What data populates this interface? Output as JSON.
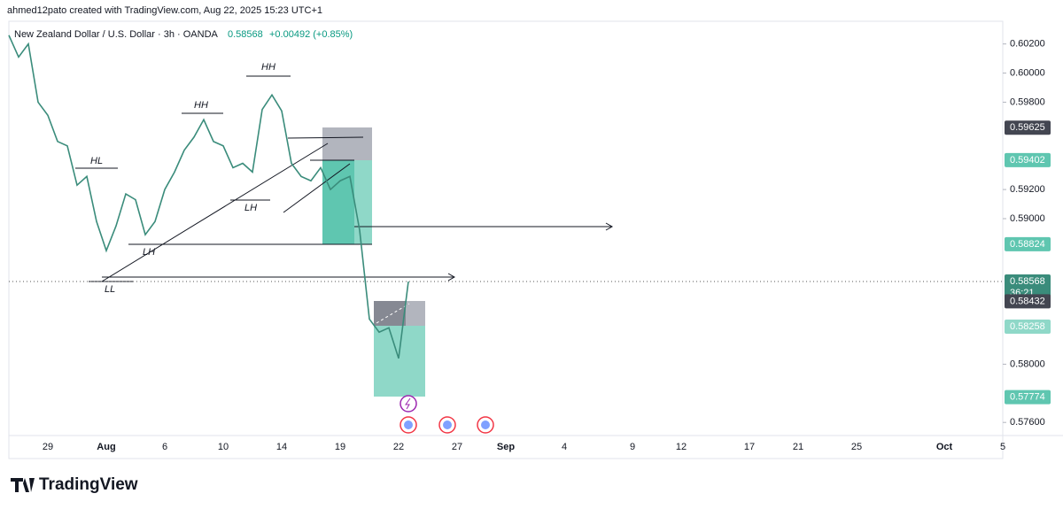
{
  "header": {
    "credit": "ahmed12pato created with TradingView.com, Aug 22, 2025 15:23 UTC+1"
  },
  "chart_data": {
    "type": "line",
    "title": "New Zealand Dollar / U.S. Dollar · 3h · OANDA",
    "last_price": "0.58568",
    "change": "+0.00492 (+0.85%)",
    "color": "#3a8c7b",
    "categories": [
      null,
      null,
      null,
      null,
      "29",
      null,
      null,
      null,
      null,
      null,
      "Aug",
      null,
      null,
      null,
      null,
      null,
      "6",
      null,
      null,
      null,
      null,
      null,
      "10",
      null,
      null,
      null,
      null,
      null,
      "14",
      null,
      null,
      null,
      null,
      null,
      "19",
      null,
      null,
      null,
      null,
      null,
      "22",
      null,
      null,
      null,
      null,
      null,
      "27",
      null,
      null,
      null,
      null,
      "Sep",
      null,
      null,
      null,
      null,
      null,
      "4",
      null,
      null,
      null,
      null,
      null,
      null,
      "9",
      null,
      null,
      null,
      null,
      "12",
      null,
      null,
      null,
      null,
      null,
      null,
      "17",
      null,
      null,
      null,
      null,
      "21",
      null,
      null,
      null,
      null,
      null,
      "25",
      null,
      null,
      null,
      null,
      null,
      null,
      null,
      null,
      "Oct",
      null,
      null,
      null,
      null,
      null,
      "5"
    ],
    "values": [
      0.6026,
      0.6011,
      0.602,
      0.598,
      0.5971,
      0.5953,
      0.595,
      0.5923,
      0.5929,
      0.5898,
      0.5878,
      0.5895,
      0.5917,
      0.5913,
      0.5889,
      0.5898,
      0.592,
      0.5932,
      0.5947,
      0.5956,
      0.5968,
      0.5953,
      0.595,
      0.5935,
      0.5938,
      0.5932,
      0.5975,
      0.5985,
      0.5974,
      0.5938,
      0.5929,
      0.5926,
      0.5935,
      0.592,
      0.5926,
      0.5929,
      0.5892,
      0.5831,
      0.5822,
      0.5825,
      0.5804,
      0.58568,
      null,
      null,
      null,
      null,
      null,
      null,
      null,
      null,
      null,
      null,
      null,
      null,
      null,
      null,
      null,
      null,
      null,
      null,
      null,
      null,
      null,
      null,
      null,
      null,
      null,
      null,
      null,
      null,
      null,
      null,
      null,
      null,
      null,
      null,
      null,
      null,
      null,
      null,
      null,
      null,
      null,
      null,
      null,
      null,
      null,
      null,
      null,
      null,
      null,
      null,
      null,
      null,
      null,
      null,
      null,
      null,
      null,
      null,
      null,
      null,
      null
    ],
    "ylim": [
      0.5751,
      0.6035
    ],
    "yticks": [
      {
        "value": 0.602,
        "label": "0.60200"
      },
      {
        "value": 0.6,
        "label": "0.60000"
      },
      {
        "value": 0.598,
        "label": "0.59800"
      },
      {
        "value": 0.592,
        "label": "0.59200"
      },
      {
        "value": 0.59,
        "label": "0.59000"
      },
      {
        "value": 0.58,
        "label": "0.58000"
      },
      {
        "value": 0.576,
        "label": "0.57600"
      }
    ],
    "price_labels": [
      {
        "value": 0.59625,
        "label": "0.59625",
        "color": "#434651"
      },
      {
        "value": 0.59402,
        "label": "0.59402",
        "color": "#5fc6b0"
      },
      {
        "value": 0.58824,
        "label": "0.58824",
        "color": "#5fc6b0"
      },
      {
        "value": 0.58568,
        "label": "0.58568",
        "color": "#3a8c7b"
      },
      {
        "value": 0.58432,
        "label": "0.58432",
        "color": "#434651"
      },
      {
        "value": 0.58258,
        "label": "0.58258",
        "color": "#8fd8c8"
      },
      {
        "value": 0.57774,
        "label": "0.57774",
        "color": "#5fc6b0"
      }
    ],
    "countdown": "36:21",
    "annotations": [
      "HH",
      "HH",
      "HL",
      "LH",
      "LH",
      "LL"
    ]
  },
  "footer": {
    "brand": "TradingView"
  }
}
